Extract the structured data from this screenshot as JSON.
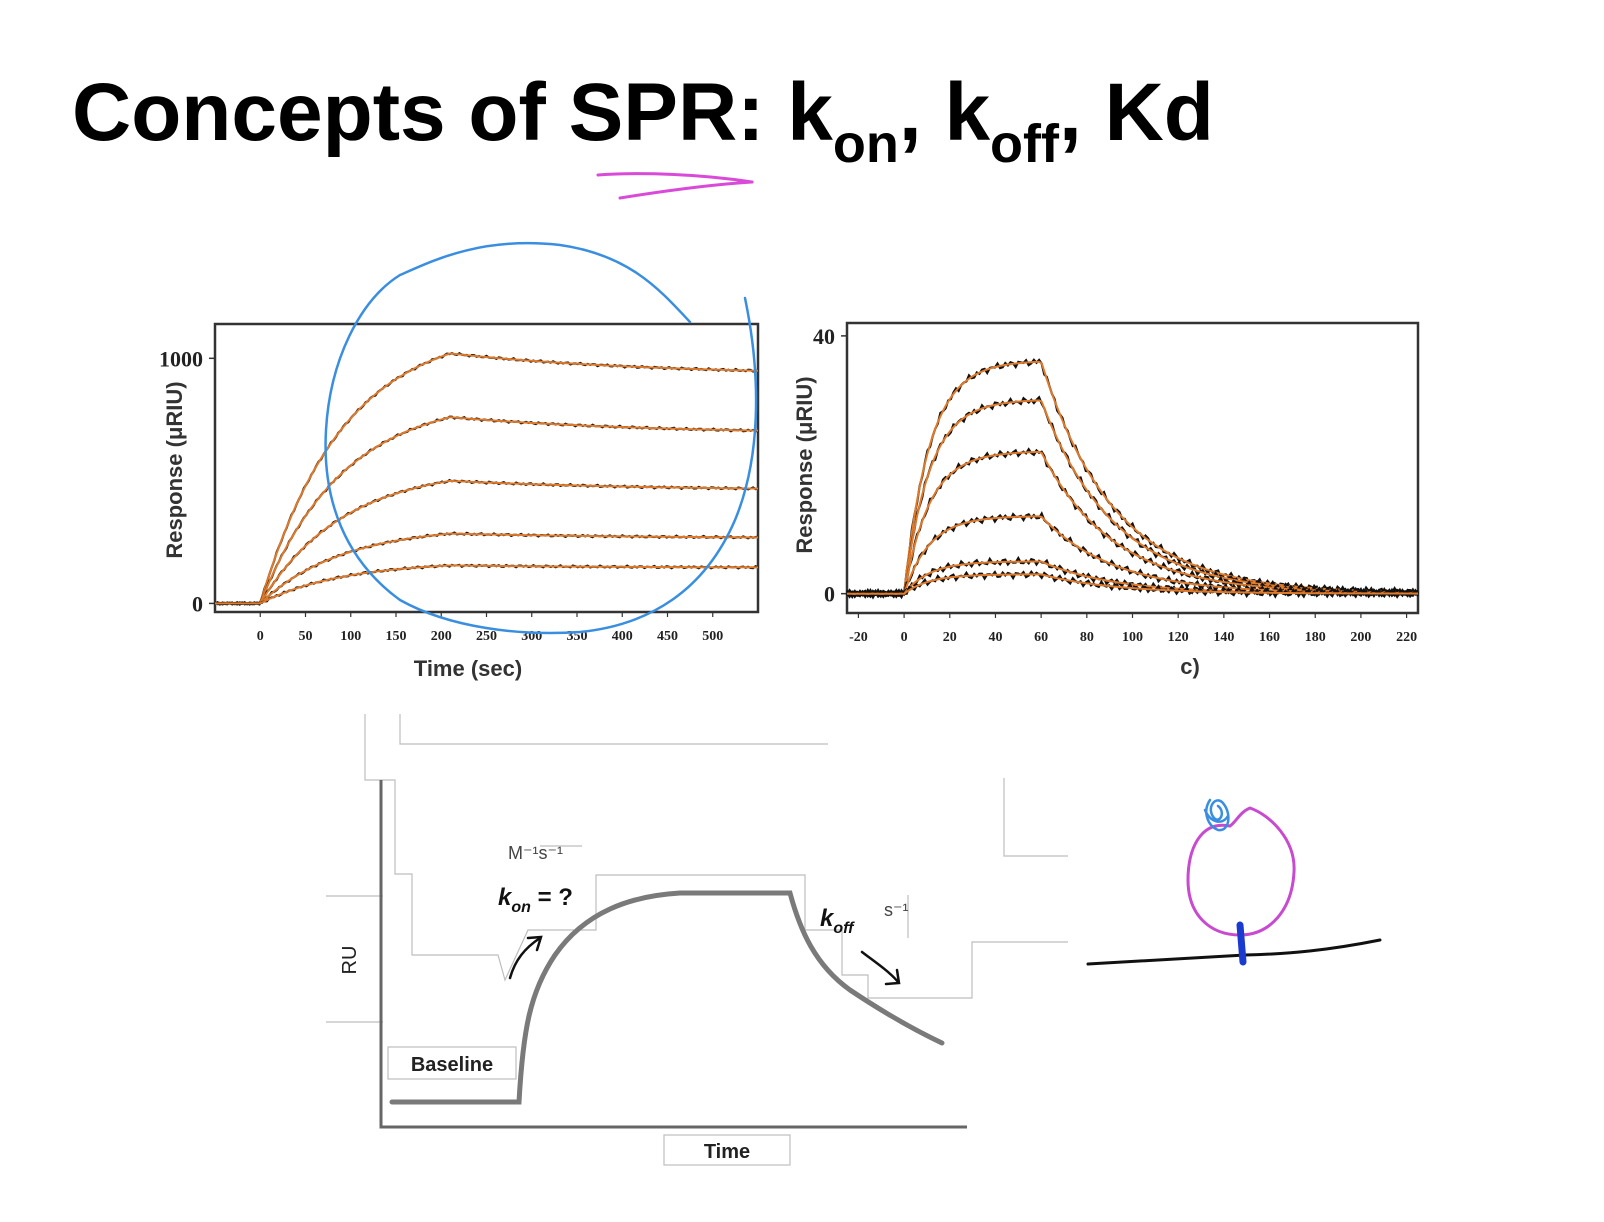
{
  "slide": {
    "title_text": "Concepts of SPR: ",
    "title_k1": "k",
    "title_on": "on",
    "title_comma1": ", ",
    "title_k2": "k",
    "title_off": "off",
    "title_comma2": ", ",
    "title_kd": "Kd"
  },
  "chart_data": [
    {
      "type": "line",
      "xlabel": "Time (sec)",
      "ylabel": "Response (μRIU)",
      "xlim": [
        -50,
        550
      ],
      "ylim": [
        -35,
        1140
      ],
      "x_ticks": [
        0,
        50,
        100,
        150,
        200,
        250,
        300,
        350,
        400,
        450,
        500
      ],
      "y_ticks": [
        0,
        1000
      ],
      "association_end": 210,
      "series": [
        {
          "max": 1020,
          "end": 930
        },
        {
          "max": 760,
          "end": 690
        },
        {
          "max": 500,
          "end": 460
        },
        {
          "max": 285,
          "end": 265
        },
        {
          "max": 155,
          "end": 145
        }
      ],
      "colors": {
        "data": "#111111",
        "fit": "#e07a2a"
      }
    },
    {
      "type": "line",
      "xlabel": "c)",
      "ylabel": "Response (μRIU)",
      "xlim": [
        -25,
        225
      ],
      "ylim": [
        -3,
        42
      ],
      "x_ticks": [
        -20,
        0,
        20,
        40,
        60,
        80,
        100,
        120,
        140,
        160,
        180,
        200,
        220
      ],
      "y_ticks": [
        0,
        40
      ],
      "association_end": 60,
      "series": [
        {
          "max": 36
        },
        {
          "max": 30
        },
        {
          "max": 22
        },
        {
          "max": 12
        },
        {
          "max": 5
        },
        {
          "max": 3
        }
      ],
      "colors": {
        "data": "#111111",
        "fit": "#e07a2a"
      }
    }
  ],
  "schematic": {
    "ru_label": "RU",
    "baseline_label": "Baseline",
    "time_label": "Time",
    "kon_k": "k",
    "kon_sub": "on",
    "kon_rest": " = ?",
    "kon_unit": "M⁻¹s⁻¹",
    "koff_k": "k",
    "koff_sub": "off",
    "koff_unit": "s⁻¹",
    "curve_color": "#7a7a7a"
  },
  "annotations": {
    "underline_color": "#d94ad9",
    "circle_color": "#3a8ee0",
    "molecule_color": "#c84ad0",
    "ligand_color": "#3a8ee0",
    "anchor_color": "#1a3ad0"
  }
}
